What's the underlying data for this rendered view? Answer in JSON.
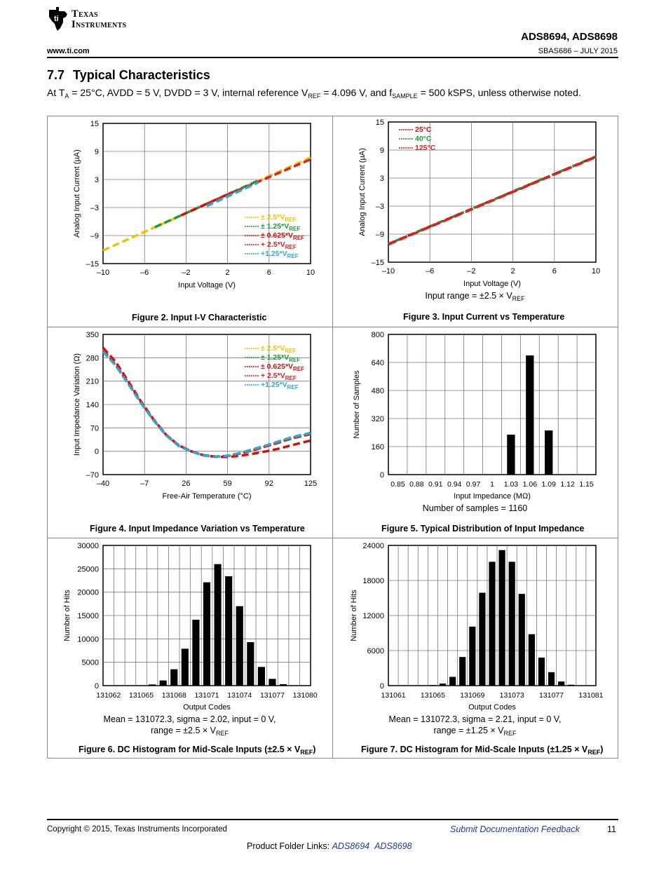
{
  "header": {
    "logo_line1": "Texas",
    "logo_line2": "Instruments",
    "product": "ADS8694, ADS8698",
    "url": "www.ti.com",
    "doc_id": "SBAS686 – JULY 2015"
  },
  "section": {
    "number": "7.7",
    "title": "Typical Characteristics",
    "conditions": {
      "p1": "At T",
      "s1": "A",
      "p2": " = 25°C, AVDD = 5 V, DVDD = 3 V, internal reference V",
      "s2": "REF",
      "p3": " = 4.096 V, and f",
      "s3": "SAMPLE",
      "p4": " = 500 kSPS, unless otherwise noted."
    }
  },
  "figures": {
    "fig2": {
      "caption": "Figure 2. Input I-V Characteristic"
    },
    "fig3": {
      "caption": "Figure 3. Input Current vs Temperature",
      "note_p": "Input range = ±2.5 × V",
      "note_s": "REF"
    },
    "fig4": {
      "caption": "Figure 4. Input Impedance Variation vs Temperature"
    },
    "fig5": {
      "caption": "Figure 5. Typical Distribution of Input Impedance",
      "note": "Number of samples = 1160"
    },
    "fig6": {
      "caption_p": "Figure 6. DC Histogram for Mid-Scale Inputs (±2.5 × V",
      "caption_s": "REF",
      "caption_e": ")",
      "note1": "Mean = 131072.3, sigma = 2.02, input = 0 V,",
      "note2_p": "range = ±2.5 × V",
      "note2_s": "REF"
    },
    "fig7": {
      "caption_p": "Figure 7. DC Histogram for Mid-Scale Inputs (±1.25 × V",
      "caption_s": "REF",
      "caption_e": ")",
      "note1": "Mean = 131072.3, sigma = 2.21, input = 0 V,",
      "note2_p": "range = ±1.25 × V",
      "note2_s": "REF"
    }
  },
  "chart_data": [
    {
      "id": "fig2",
      "type": "line",
      "xlabel": "Input Voltage (V)",
      "ylabel": "Analog Input Current (µA)",
      "xlim": [
        -10,
        10
      ],
      "ylim": [
        -15,
        15
      ],
      "xticks": [
        "–10",
        "–6",
        "–2",
        "2",
        "6",
        "10"
      ],
      "xtickvals": [
        -10,
        -6,
        -2,
        2,
        6,
        10
      ],
      "yticks": [
        "15",
        "9",
        "3",
        "–3",
        "–9",
        "–15"
      ],
      "ytickvals": [
        15,
        9,
        3,
        -3,
        -9,
        -15
      ],
      "legend_position": "bottom-right",
      "series": [
        {
          "name": "± 2.5*V",
          "sub": "REF",
          "color": "#f2c200",
          "x": [
            -10,
            10
          ],
          "y": [
            -12.2,
            7.7
          ]
        },
        {
          "name": "± 1.25*V",
          "sub": "REF",
          "color": "#1a9a3a",
          "x": [
            -5,
            5
          ],
          "y": [
            -7.2,
            2.8
          ]
        },
        {
          "name": "± 0.625*V",
          "sub": "REF",
          "color": "#cc1111",
          "x": [
            -2.5,
            2.5
          ],
          "y": [
            -4.7,
            0.3
          ]
        },
        {
          "name": "+ 2.5*V",
          "sub": "REF",
          "color": "#e02020",
          "x": [
            0,
            10
          ],
          "y": [
            -2.2,
            7.3
          ]
        },
        {
          "name": "+1.25*V",
          "sub": "REF",
          "color": "#29a9e0",
          "x": [
            0,
            5
          ],
          "y": [
            -2.7,
            2.4
          ]
        }
      ]
    },
    {
      "id": "fig3",
      "type": "line",
      "xlabel": "Input Voltage (V)",
      "ylabel": "Analog Input Current (µA)",
      "xlim": [
        -10,
        10
      ],
      "ylim": [
        -15,
        15
      ],
      "xticks": [
        "–10",
        "–6",
        "–2",
        "2",
        "6",
        "10"
      ],
      "xtickvals": [
        -10,
        -6,
        -2,
        2,
        6,
        10
      ],
      "yticks": [
        "15",
        "9",
        "3",
        "–3",
        "–9",
        "–15"
      ],
      "ytickvals": [
        15,
        9,
        3,
        -3,
        -9,
        -15
      ],
      "legend_position": "top-left",
      "series": [
        {
          "name": "25°C",
          "color": "#cc1111",
          "x": [
            -10,
            10
          ],
          "y": [
            -11.1,
            7.6
          ]
        },
        {
          "name": "40°C",
          "color": "#1a9a3a",
          "x": [
            -10,
            10
          ],
          "y": [
            -11.1,
            7.6
          ]
        },
        {
          "name": "125°C",
          "color": "#e02020",
          "x": [
            -10,
            10
          ],
          "y": [
            -11.2,
            7.5
          ]
        }
      ]
    },
    {
      "id": "fig4",
      "type": "line",
      "xlabel": "Free-Air Temperature (°C)",
      "ylabel": "Input Impedance Variation (Ω)",
      "xlim": [
        -40,
        125
      ],
      "ylim": [
        -70,
        350
      ],
      "xticks": [
        "–40",
        "–7",
        "26",
        "59",
        "92",
        "125"
      ],
      "xtickvals": [
        -40,
        -7,
        26,
        59,
        92,
        125
      ],
      "yticks": [
        "350",
        "280",
        "210",
        "140",
        "70",
        "0",
        "–70"
      ],
      "ytickvals": [
        350,
        280,
        210,
        140,
        70,
        0,
        -70
      ],
      "legend_position": "top-right",
      "series": [
        {
          "name": "± 2.5*V",
          "sub": "REF",
          "color": "#f2c200",
          "x": [
            -40,
            -30,
            -20,
            -10,
            0,
            10,
            20,
            30,
            40,
            50,
            60,
            70,
            80,
            90,
            100,
            110,
            125
          ],
          "y": [
            305,
            262,
            206,
            148,
            95,
            50,
            18,
            0,
            -12,
            -16,
            -14,
            -5,
            5,
            16,
            28,
            40,
            53
          ]
        },
        {
          "name": "± 1.25*V",
          "sub": "REF",
          "color": "#1a9a3a",
          "x": [
            -40,
            -30,
            -20,
            -10,
            0,
            10,
            20,
            30,
            40,
            50,
            60,
            70,
            80,
            90,
            100,
            110,
            125
          ],
          "y": [
            300,
            258,
            203,
            146,
            94,
            49,
            17,
            0,
            -12,
            -16,
            -14,
            -6,
            4,
            15,
            26,
            38,
            51
          ]
        },
        {
          "name": "± 0.625*V",
          "sub": "REF",
          "color": "#cc1111",
          "x": [
            -40,
            -30,
            -20,
            -10,
            0,
            10,
            20,
            30,
            40,
            50,
            60,
            70,
            80,
            90,
            100,
            110,
            125
          ],
          "y": [
            310,
            268,
            210,
            150,
            96,
            50,
            18,
            0,
            -12,
            -17,
            -17,
            -13,
            -7,
            0,
            8,
            18,
            32
          ]
        },
        {
          "name": "+ 2.5*V",
          "sub": "REF",
          "color": "#e02020",
          "x": [
            -40,
            -30,
            -20,
            -10,
            0,
            10,
            20,
            30,
            40,
            50,
            60,
            70,
            80,
            90,
            100,
            110,
            125
          ],
          "y": [
            303,
            260,
            205,
            147,
            95,
            50,
            18,
            0,
            -12,
            -16,
            -14,
            -6,
            4,
            15,
            27,
            39,
            52
          ]
        },
        {
          "name": "+1.25*V",
          "sub": "REF",
          "color": "#29a9e0",
          "x": [
            -40,
            -30,
            -20,
            -10,
            0,
            10,
            20,
            30,
            40,
            50,
            60,
            70,
            80,
            90,
            100,
            110,
            125
          ],
          "y": [
            298,
            257,
            202,
            145,
            93,
            48,
            16,
            -1,
            -13,
            -16,
            -13,
            -4,
            7,
            18,
            30,
            42,
            55
          ]
        }
      ]
    },
    {
      "id": "fig5",
      "type": "bar",
      "xlabel": "Input Impedance (MΩ)",
      "ylabel": "Number of Samples",
      "ylim": [
        0,
        800
      ],
      "yticks": [
        "800",
        "640",
        "480",
        "320",
        "160",
        "0"
      ],
      "ytickvals": [
        800,
        640,
        480,
        320,
        160,
        0
      ],
      "categories": [
        "0.85",
        "0.88",
        "0.91",
        "0.94",
        "0.97",
        "1",
        "1.03",
        "1.06",
        "1.09",
        "1.12",
        "1.15"
      ],
      "values": [
        0,
        0,
        0,
        0,
        0,
        0,
        228,
        680,
        252,
        0,
        0
      ]
    },
    {
      "id": "fig6",
      "type": "bar",
      "xlabel": "Output Codes",
      "ylabel": "Number of Hits",
      "ylim": [
        0,
        30000
      ],
      "yticks": [
        "30000",
        "25000",
        "20000",
        "15000",
        "10000",
        "5000",
        "0"
      ],
      "ytickvals": [
        30000,
        25000,
        20000,
        15000,
        10000,
        5000,
        0
      ],
      "xticks": [
        "131062",
        "131065",
        "131068",
        "131071",
        "131074",
        "131077",
        "131080"
      ],
      "categories": [
        "131062",
        "131063",
        "131064",
        "131065",
        "131066",
        "131067",
        "131068",
        "131069",
        "131070",
        "131071",
        "131072",
        "131073",
        "131074",
        "131075",
        "131076",
        "131077",
        "131078",
        "131079",
        "131080"
      ],
      "values": [
        0,
        0,
        0,
        0,
        250,
        1100,
        3500,
        7900,
        14100,
        22100,
        26000,
        23400,
        17000,
        9300,
        4000,
        1450,
        300,
        0,
        0
      ]
    },
    {
      "id": "fig7",
      "type": "bar",
      "xlabel": "Output Codes",
      "ylabel": "Number of Hits",
      "ylim": [
        0,
        24000
      ],
      "yticks": [
        "24000",
        "18000",
        "12000",
        "6000",
        "0"
      ],
      "ytickvals": [
        24000,
        18000,
        12000,
        6000,
        0
      ],
      "xticks": [
        "131061",
        "131065",
        "131069",
        "131073",
        "131077",
        "131081"
      ],
      "categories": [
        "131061",
        "131062",
        "131063",
        "131064",
        "131065",
        "131066",
        "131067",
        "131068",
        "131069",
        "131070",
        "131071",
        "131072",
        "131073",
        "131074",
        "131075",
        "131076",
        "131077",
        "131078",
        "131079",
        "131080",
        "131081"
      ],
      "values": [
        0,
        0,
        0,
        0,
        100,
        350,
        1500,
        4900,
        10100,
        15900,
        21200,
        23200,
        21200,
        15700,
        8800,
        4800,
        2300,
        700,
        150,
        0,
        0
      ]
    }
  ],
  "footer": {
    "copyright": "Copyright © 2015, Texas Instruments Incorporated",
    "feedback": "Submit Documentation Feedback",
    "page": "11",
    "links_label": "Product Folder Links: ",
    "link1": "ADS8694",
    "link2": "ADS8698"
  }
}
